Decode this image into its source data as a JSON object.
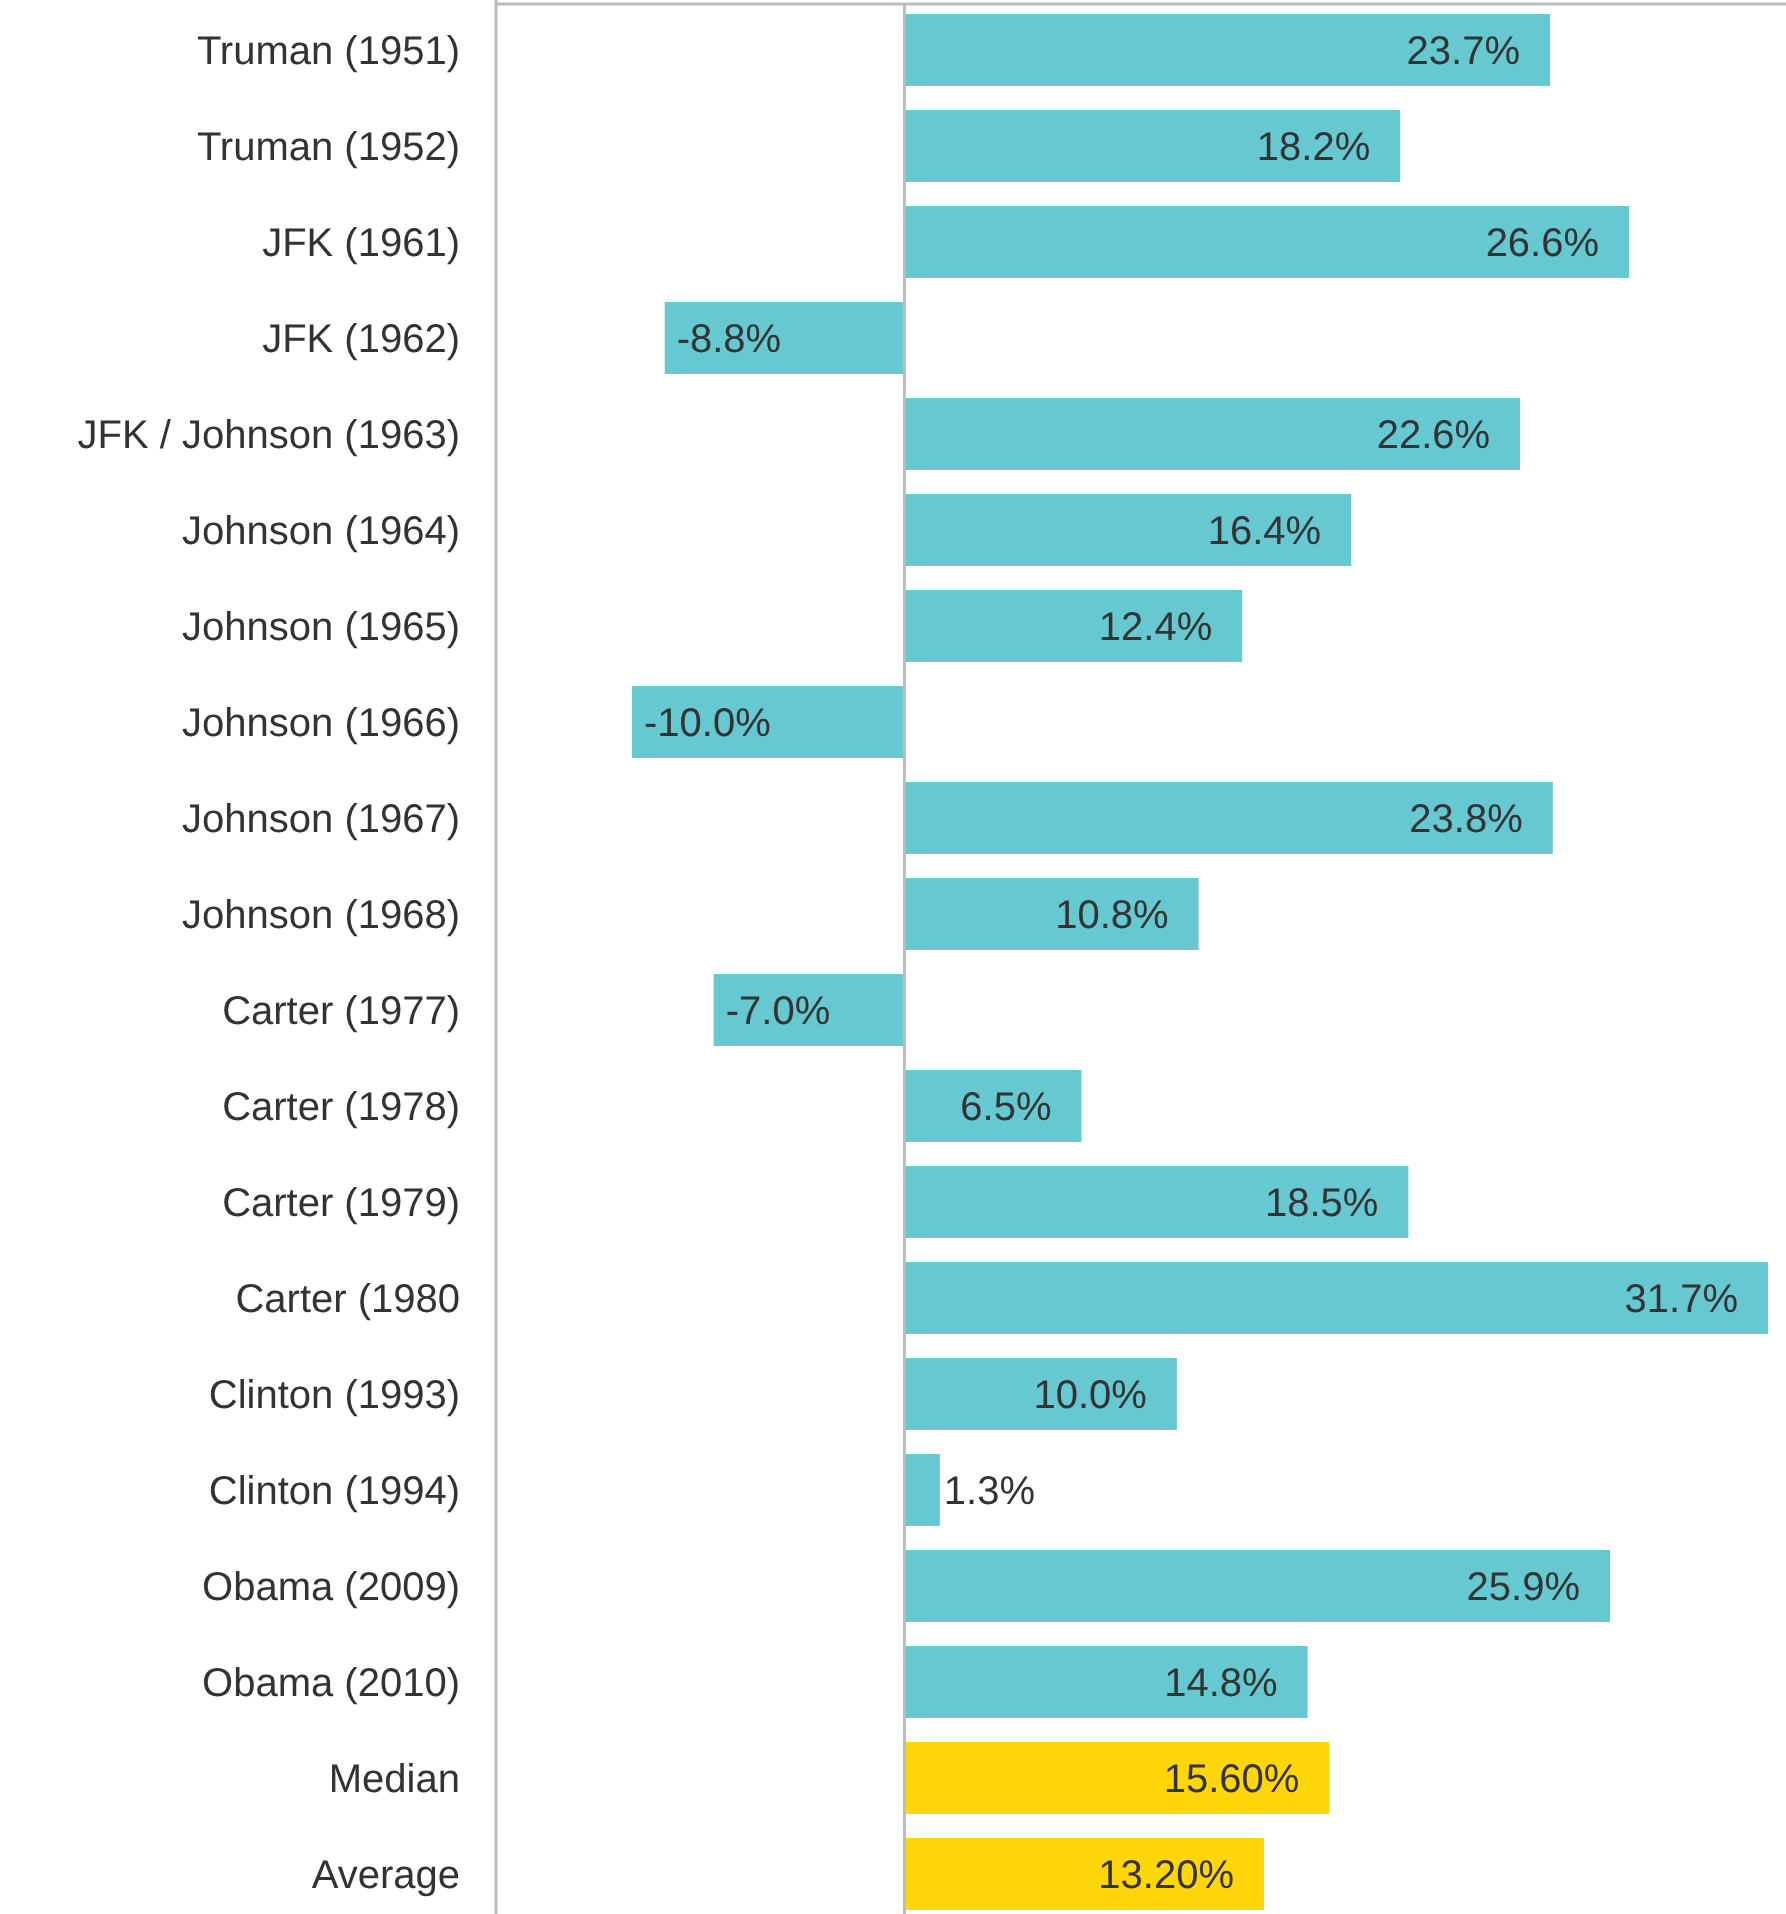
{
  "chart_data": {
    "type": "bar",
    "orientation": "horizontal",
    "categories": [
      "Truman (1951)",
      "Truman (1952)",
      "JFK (1961)",
      "JFK (1962)",
      "JFK / Johnson (1963)",
      "Johnson (1964)",
      "Johnson (1965)",
      "Johnson (1966)",
      "Johnson (1967)",
      "Johnson (1968)",
      "Carter (1977)",
      "Carter (1978)",
      "Carter (1979)",
      "Carter (1980",
      "Clinton (1993)",
      "Clinton (1994)",
      "Obama (2009)",
      "Obama (2010)",
      "Median",
      "Average"
    ],
    "values": [
      23.7,
      18.2,
      26.6,
      -8.8,
      22.6,
      16.4,
      12.4,
      -10.0,
      23.8,
      10.8,
      -7.0,
      6.5,
      18.5,
      31.7,
      10.0,
      1.3,
      25.9,
      14.8,
      15.6,
      13.2
    ],
    "value_labels": [
      "23.7%",
      "18.2%",
      "26.6%",
      "-8.8%",
      "22.6%",
      "16.4%",
      "12.4%",
      "-10.0%",
      "23.8%",
      "10.8%",
      "-7.0%",
      "6.5%",
      "18.5%",
      "31.7%",
      "10.0%",
      "1.3%",
      "25.9%",
      "14.8%",
      "15.60%",
      "13.20%"
    ],
    "colors": [
      "#66c8d0",
      "#66c8d0",
      "#66c8d0",
      "#66c8d0",
      "#66c8d0",
      "#66c8d0",
      "#66c8d0",
      "#66c8d0",
      "#66c8d0",
      "#66c8d0",
      "#66c8d0",
      "#66c8d0",
      "#66c8d0",
      "#66c8d0",
      "#66c8d0",
      "#66c8d0",
      "#66c8d0",
      "#66c8d0",
      "#ffd60a",
      "#ffd60a"
    ]
  }
}
